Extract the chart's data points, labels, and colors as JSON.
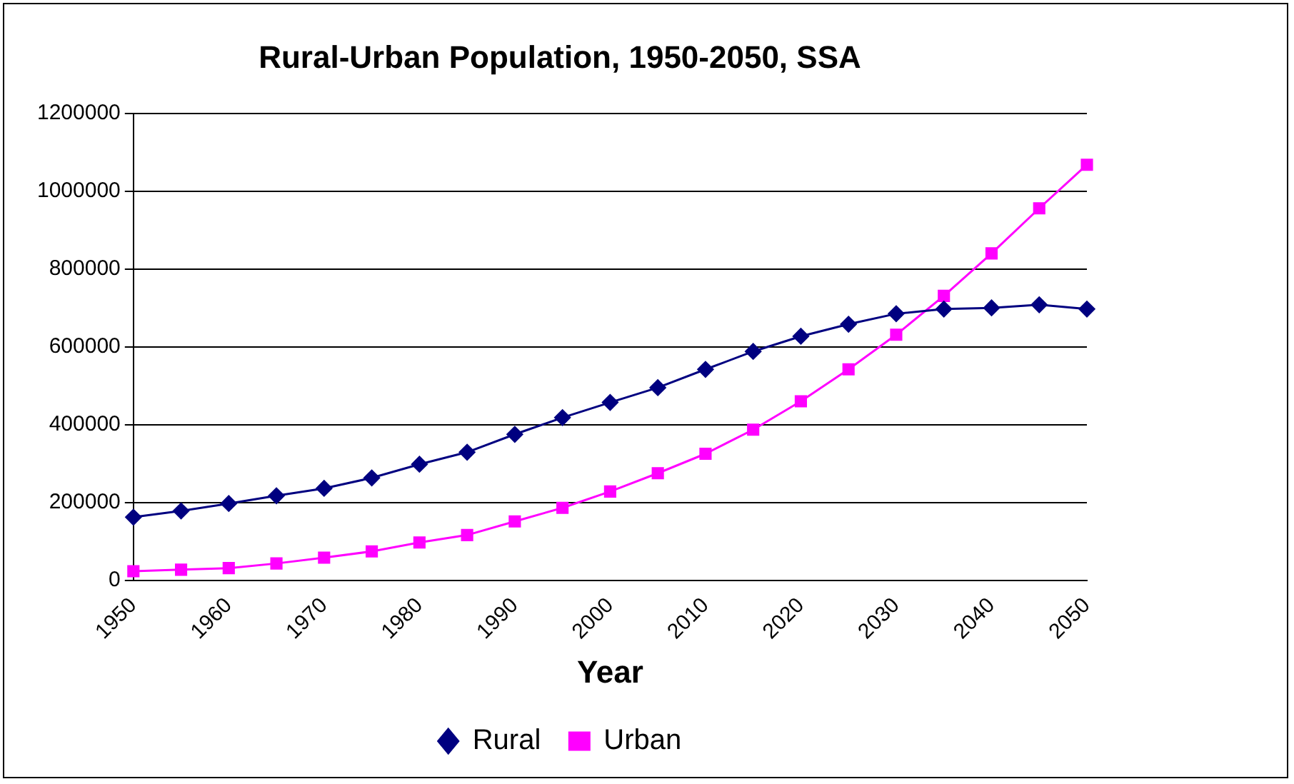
{
  "chart_data": {
    "type": "line",
    "title": "Rural-Urban Population, 1950-2050, SSA",
    "xlabel": "Year",
    "categories": [
      "1950",
      null,
      "1960",
      null,
      "1970",
      null,
      "1980",
      null,
      "1990",
      null,
      "2000",
      null,
      "2010",
      null,
      "2020",
      null,
      "2030",
      null,
      "2040",
      null,
      "2050"
    ],
    "series": [
      {
        "name": "Rural",
        "color": "#000080",
        "marker": "diamond",
        "values": [
          162000,
          178000,
          197000,
          217000,
          236000,
          263000,
          298000,
          329000,
          375000,
          418000,
          457000,
          495000,
          542000,
          588000,
          627000,
          658000,
          685000,
          697000,
          700000,
          708000,
          697000
        ]
      },
      {
        "name": "Urban",
        "color": "#ff00ff",
        "marker": "square",
        "values": [
          23000,
          27000,
          31000,
          43000,
          58000,
          74000,
          97000,
          116000,
          151000,
          186000,
          228000,
          275000,
          325000,
          387000,
          460000,
          542000,
          631000,
          731000,
          840000,
          956000,
          1068000
        ]
      }
    ],
    "ylim": [
      0,
      1200000
    ],
    "yticks": [
      0,
      200000,
      400000,
      600000,
      800000,
      1000000,
      1200000
    ],
    "grid": "y",
    "legend": "bottom"
  }
}
